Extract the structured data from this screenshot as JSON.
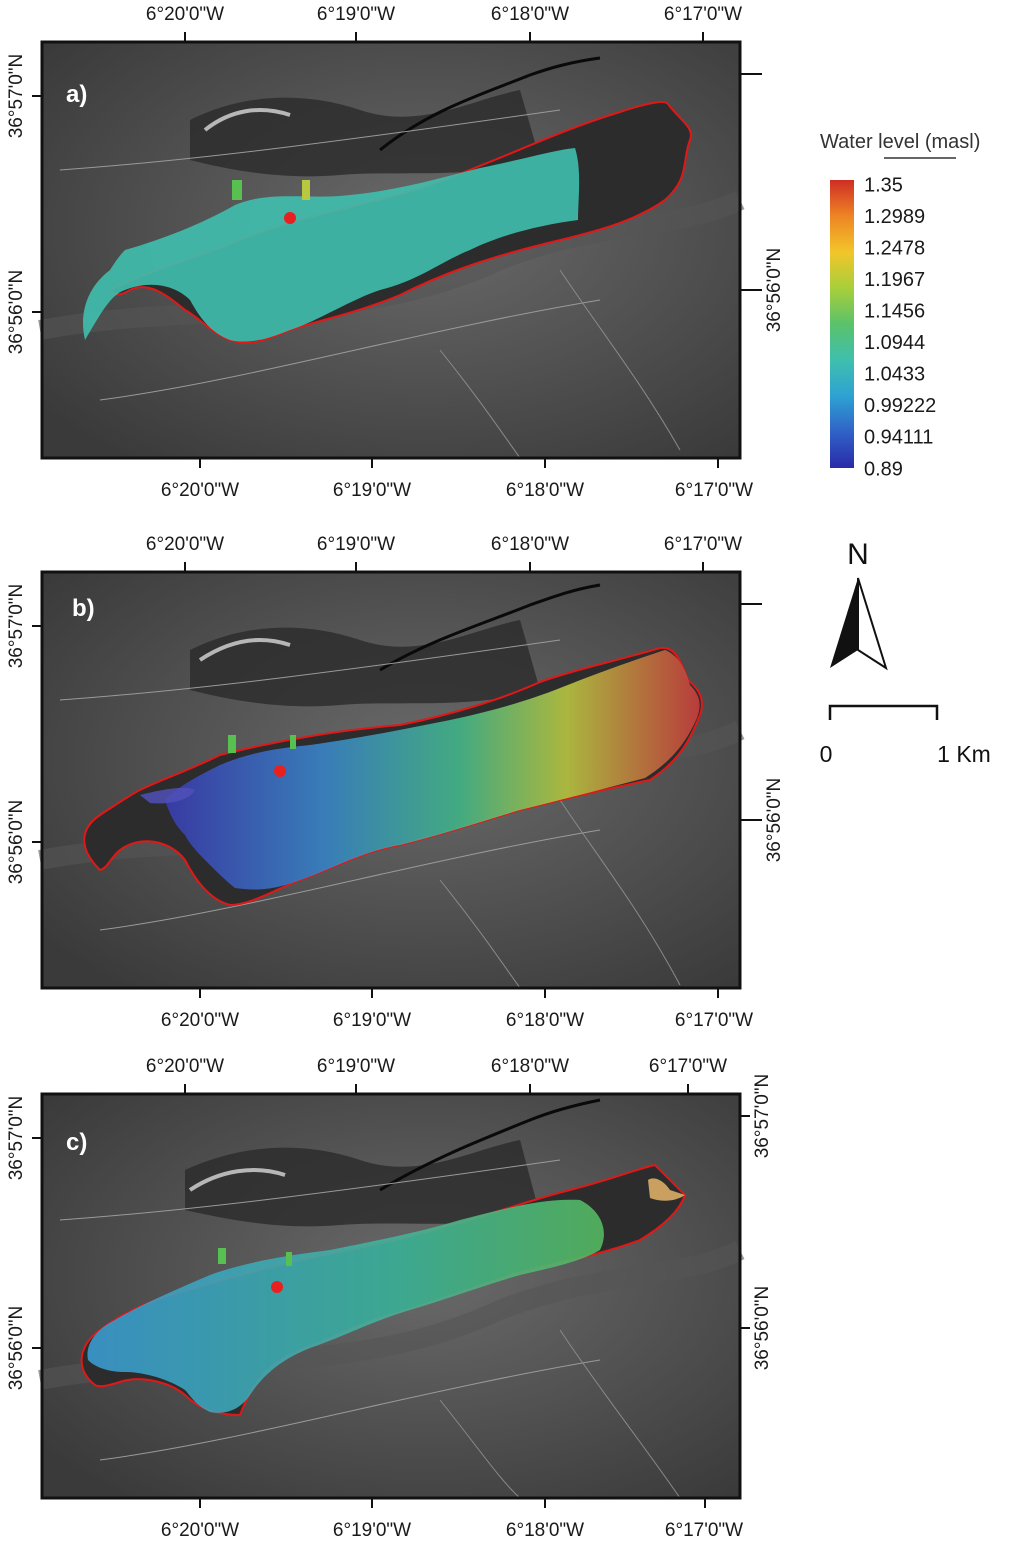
{
  "colors": {
    "outline": "#e01818",
    "gauge": "#e82020",
    "ramp": [
      "#2a2aa8",
      "#2f62c8",
      "#2ea2d2",
      "#3fbfae",
      "#5bc26a",
      "#a8cf3a",
      "#f2c52a",
      "#ee8424",
      "#cf2d24"
    ]
  },
  "legend": {
    "title": "Water level (masl)",
    "labels": [
      "1.35",
      "1.2989",
      "1.2478",
      "1.1967",
      "1.1456",
      "1.0944",
      "1.0433",
      "0.99222",
      "0.94111",
      "0.89"
    ]
  },
  "north_label": "N",
  "scale_bar": {
    "start": "0",
    "end": "1 Km"
  },
  "panels": [
    {
      "label": "a)",
      "lon_top": [
        "6°20'0\"W",
        "6°19'0\"W",
        "6°18'0\"W",
        "6°17'0\"W"
      ],
      "lon_bottom": [
        "6°20'0\"W",
        "6°19'0\"W",
        "6°18'0\"W",
        "6°17'0\"W"
      ],
      "lat_left": [
        "36°57'0\"N",
        "36°56'0\"N"
      ],
      "lat_right": [
        "36°56'0\"N"
      ],
      "flood_mode": "uniform",
      "flood_level": 1.07
    },
    {
      "label": "b)",
      "lon_top": [
        "6°20'0\"W",
        "6°19'0\"W",
        "6°18'0\"W",
        "6°17'0\"W"
      ],
      "lon_bottom": [
        "6°20'0\"W",
        "6°19'0\"W",
        "6°18'0\"W",
        "6°17'0\"W"
      ],
      "lat_left": [
        "36°57'0\"N",
        "36°56'0\"N"
      ],
      "lat_right": [
        "36°56'0\"N"
      ],
      "flood_mode": "gradient",
      "flood_level_west": 0.9,
      "flood_level_east": 1.34
    },
    {
      "label": "c)",
      "lon_top": [
        "6°20'0\"W",
        "6°19'0\"W",
        "6°18'0\"W",
        "6°17'0\"W"
      ],
      "lon_bottom": [
        "6°20'0\"W",
        "6°19'0\"W",
        "6°18'0\"W",
        "6°17'0\"W"
      ],
      "lat_left": [
        "36°57'0\"N",
        "36°56'0\"N"
      ],
      "lat_right": [
        "36°57'0\"N",
        "36°56'0\"N"
      ],
      "flood_mode": "gradient",
      "flood_level_west": 1.03,
      "flood_level_east": 1.11
    }
  ]
}
